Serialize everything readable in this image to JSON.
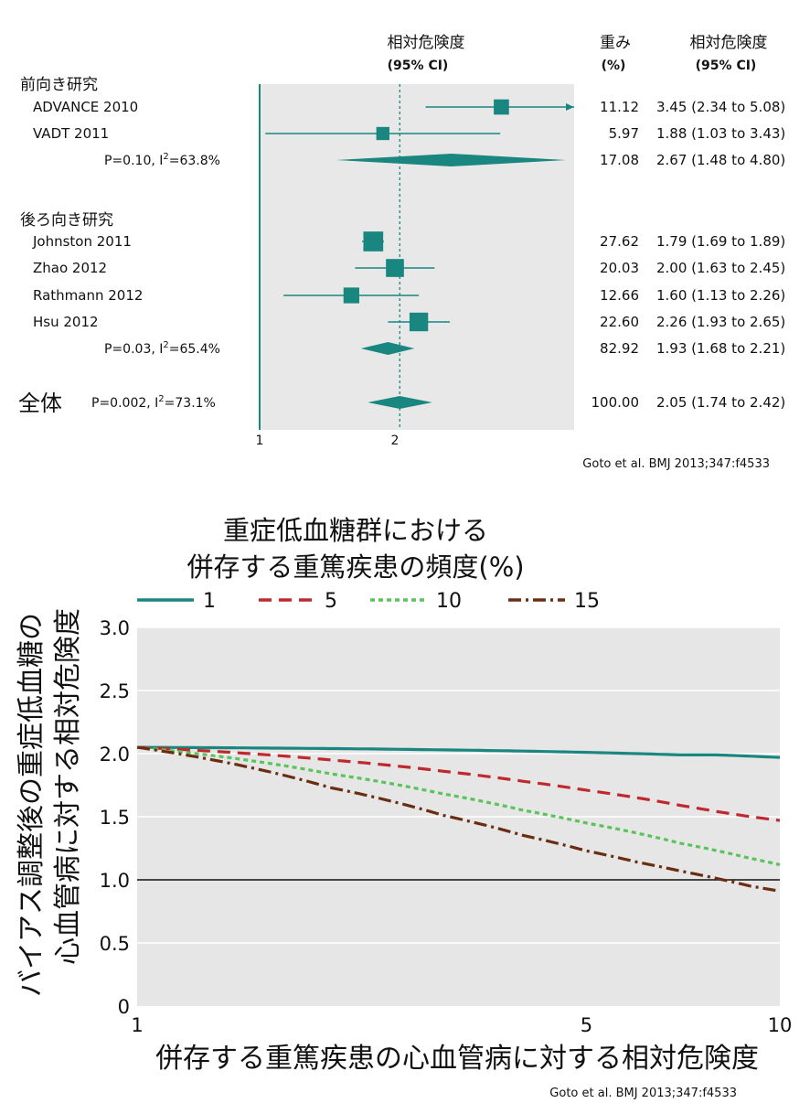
{
  "chart_data": [
    {
      "type": "forest",
      "header": {
        "effect_title": "相対危険度",
        "effect_ci": "(95% CI)",
        "weight_title": "重み",
        "weight_unit": "(%)",
        "rr_title": "相対危険度",
        "rr_ci": "(95% CI)"
      },
      "x_ticks": [
        1,
        2
      ],
      "reference_value": 1,
      "overall_value": 2.05,
      "colors": {
        "marker": "#19867f",
        "panel": "#e8e8e8"
      },
      "groups": [
        {
          "label": "前向き研究",
          "studies": [
            {
              "name": "ADVANCE 2010",
              "rr": 3.45,
              "lo": 2.34,
              "hi": 5.08,
              "weight": "11.12",
              "ci_text": "3.45 (2.34 to 5.08)",
              "arrow": true
            },
            {
              "name": "VADT 2011",
              "rr": 1.88,
              "lo": 1.03,
              "hi": 3.43,
              "weight": "5.97",
              "ci_text": "1.88 (1.03 to 3.43)"
            }
          ],
          "summary": {
            "het_prefix": "P=0.10, I",
            "het_suffix": "=63.8%",
            "rr": 2.67,
            "lo": 1.48,
            "hi": 4.8,
            "weight": "17.08",
            "ci_text": "2.67 (1.48 to 4.80)"
          }
        },
        {
          "label": "後ろ向き研究",
          "studies": [
            {
              "name": "Johnston 2011",
              "rr": 1.79,
              "lo": 1.69,
              "hi": 1.89,
              "weight": "27.62",
              "ci_text": "1.79 (1.69 to 1.89)"
            },
            {
              "name": "Zhao 2012",
              "rr": 2.0,
              "lo": 1.63,
              "hi": 2.45,
              "weight": "20.03",
              "ci_text": "2.00 (1.63 to 2.45)"
            },
            {
              "name": "Rathmann 2012",
              "rr": 1.6,
              "lo": 1.13,
              "hi": 2.26,
              "weight": "12.66",
              "ci_text": "1.60 (1.13 to 2.26)"
            },
            {
              "name": "Hsu 2012",
              "rr": 2.26,
              "lo": 1.93,
              "hi": 2.65,
              "weight": "22.60",
              "ci_text": "2.26 (1.93 to 2.65)"
            }
          ],
          "summary": {
            "het_prefix": "P=0.03, I",
            "het_suffix": "=65.4%",
            "rr": 1.93,
            "lo": 1.68,
            "hi": 2.21,
            "weight": "82.92",
            "ci_text": "1.93 (1.68 to 2.21)"
          }
        }
      ],
      "overall": {
        "label": "全体",
        "het_prefix": "P=0.002, I",
        "het_suffix": "=73.1%",
        "rr": 2.05,
        "lo": 1.74,
        "hi": 2.42,
        "weight": "100.00",
        "ci_text": "2.05 (1.74 to 2.42)"
      },
      "het_superscript": "2",
      "citation": "Goto et al. BMJ 2013;347:f4533"
    },
    {
      "type": "line",
      "title_line1": "重症低血糖群における",
      "title_line2": "併存する重篤疾患の頻度(%)",
      "xlabel": "併存する重篤疾患の心血管病に対する相対危険度",
      "ylabel_line1": "バイアス調整後の重症低血糖の",
      "ylabel_line2": "心血管病に対する相対危険度",
      "xlim": [
        1,
        10
      ],
      "ylim": [
        0,
        3.0
      ],
      "x_ticks": [
        "1",
        "5",
        "10"
      ],
      "x_tick_values": [
        1,
        5,
        10
      ],
      "y_ticks": [
        "3.0",
        "2.5",
        "2.0",
        "1.5",
        "1.0",
        "0.5",
        "0"
      ],
      "y_tick_values": [
        3.0,
        2.5,
        2.0,
        1.5,
        1.0,
        0.5,
        0
      ],
      "reference_line": 1.0,
      "grid": true,
      "legend_position": "top",
      "x": [
        1,
        2,
        3,
        4,
        5,
        6,
        7,
        8,
        9,
        10
      ],
      "series": [
        {
          "name": "1",
          "color": "#19867f",
          "dash": "solid",
          "values": [
            2.05,
            2.04,
            2.03,
            2.02,
            2.01,
            2.0,
            1.99,
            1.99,
            1.98,
            1.97
          ]
        },
        {
          "name": "5",
          "color": "#c0282d",
          "dash": "dash",
          "values": [
            2.05,
            1.95,
            1.86,
            1.78,
            1.71,
            1.65,
            1.59,
            1.54,
            1.5,
            1.47
          ]
        },
        {
          "name": "10",
          "color": "#5ac45a",
          "dash": "dot",
          "values": [
            2.05,
            1.84,
            1.68,
            1.55,
            1.45,
            1.37,
            1.29,
            1.23,
            1.17,
            1.12
          ]
        },
        {
          "name": "15",
          "color": "#6b2d12",
          "dash": "dashdot",
          "values": [
            2.05,
            1.73,
            1.51,
            1.35,
            1.23,
            1.14,
            1.07,
            1.01,
            0.95,
            0.91
          ]
        }
      ],
      "citation": "Goto et al. BMJ 2013;347:f4533"
    }
  ]
}
